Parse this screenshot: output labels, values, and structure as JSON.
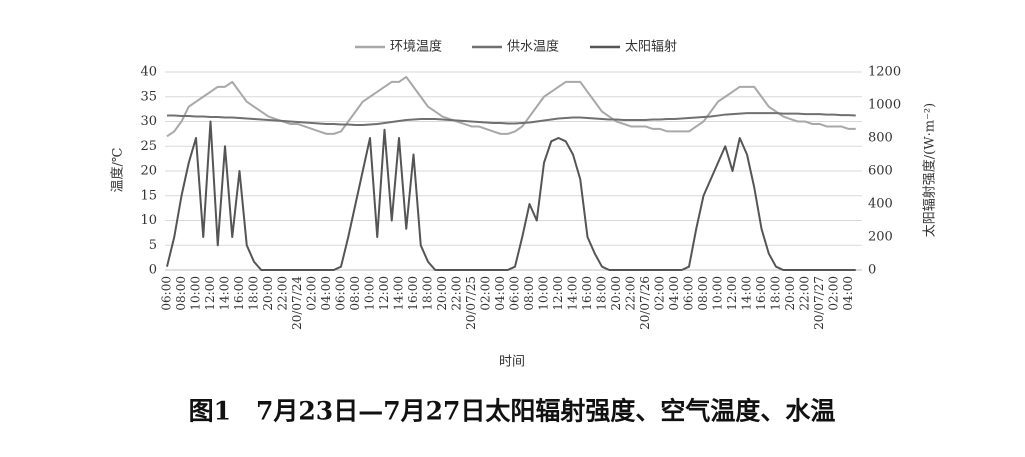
{
  "chart_data": {
    "type": "line",
    "caption": "图1　7月23日—7月27日太阳辐射强度、空气温度、水温",
    "x_label": "时间",
    "y_label": "温度/℃",
    "y2_label": "太阳辐射强度/(W·m⁻²)",
    "categories": [
      "06:00",
      null,
      "08:00",
      null,
      "10:00",
      null,
      "12:00",
      null,
      "14:00",
      null,
      "16:00",
      null,
      "18:00",
      null,
      "20:00",
      null,
      "22:00",
      null,
      "20/07/24",
      null,
      "02:00",
      null,
      "04:00",
      null,
      "06:00",
      null,
      "08:00",
      null,
      "10:00",
      null,
      "12:00",
      null,
      "14:00",
      null,
      "16:00",
      null,
      "18:00",
      null,
      "20:00",
      null,
      "22:00",
      null,
      "20/07/25",
      null,
      "02:00",
      null,
      "04:00",
      null,
      "06:00",
      null,
      "08:00",
      null,
      "10:00",
      null,
      "12:00",
      null,
      "14:00",
      null,
      "16:00",
      null,
      "18:00",
      null,
      "20:00",
      null,
      "22:00",
      null,
      "20/07/26",
      null,
      "02:00",
      null,
      "04:00",
      null,
      "06:00",
      null,
      "08:00",
      null,
      "10:00",
      null,
      "12:00",
      null,
      "14:00",
      null,
      "16:00",
      null,
      "18:00",
      null,
      "20:00",
      null,
      "22:00",
      null,
      "20/07/27",
      null,
      "02:00",
      null,
      "04:00",
      null
    ],
    "ylim": [
      0,
      40
    ],
    "yticks": [
      0,
      5,
      10,
      15,
      20,
      25,
      30,
      35,
      40
    ],
    "y2lim": [
      0,
      1200
    ],
    "y2ticks": [
      0,
      200,
      400,
      600,
      800,
      1000,
      1200
    ],
    "grid": true,
    "series": [
      {
        "name": "环境温度",
        "color": "#a8a8a8",
        "values": [
          27,
          28,
          30,
          33,
          34,
          35,
          36,
          37,
          37,
          38,
          36,
          34,
          33,
          32,
          31,
          30.5,
          30,
          29.5,
          29.5,
          29,
          28.5,
          28,
          27.5,
          27.5,
          28,
          30,
          32,
          34,
          35,
          36,
          37,
          38,
          38,
          39,
          37,
          35,
          33,
          32,
          31,
          30.5,
          30,
          29.5,
          29,
          29,
          28.5,
          28,
          27.5,
          27.5,
          28,
          29,
          31,
          33,
          35,
          36,
          37,
          38,
          38,
          38,
          36,
          34,
          32,
          31,
          30,
          29.5,
          29,
          29,
          29,
          28.5,
          28.5,
          28,
          28,
          28,
          28,
          29,
          30,
          32,
          34,
          35,
          36,
          37,
          37,
          37,
          35,
          33,
          32,
          31,
          30.5,
          30,
          30,
          29.5,
          29.5,
          29,
          29,
          29,
          28.5,
          28.5
        ]
      },
      {
        "name": "供水温度",
        "color": "#707070",
        "values": [
          31.2,
          31.2,
          31.1,
          31.1,
          31.0,
          31.0,
          30.9,
          30.9,
          30.8,
          30.8,
          30.7,
          30.6,
          30.5,
          30.4,
          30.3,
          30.2,
          30.1,
          30.0,
          29.9,
          29.8,
          29.7,
          29.6,
          29.5,
          29.5,
          29.4,
          29.4,
          29.3,
          29.3,
          29.4,
          29.5,
          29.7,
          29.9,
          30.1,
          30.3,
          30.4,
          30.5,
          30.5,
          30.5,
          30.4,
          30.3,
          30.2,
          30.1,
          30.0,
          29.9,
          29.8,
          29.7,
          29.7,
          29.6,
          29.6,
          29.7,
          29.8,
          30.0,
          30.2,
          30.4,
          30.6,
          30.7,
          30.8,
          30.8,
          30.7,
          30.6,
          30.5,
          30.4,
          30.4,
          30.3,
          30.3,
          30.3,
          30.3,
          30.4,
          30.4,
          30.5,
          30.5,
          30.6,
          30.7,
          30.8,
          30.9,
          31.0,
          31.2,
          31.4,
          31.5,
          31.6,
          31.7,
          31.7,
          31.7,
          31.7,
          31.7,
          31.6,
          31.6,
          31.6,
          31.5,
          31.5,
          31.5,
          31.4,
          31.4,
          31.3,
          31.3,
          31.2
        ]
      },
      {
        "name": "太阳辐射",
        "color": "#555555",
        "axis": "y2",
        "values": [
          20,
          200,
          450,
          650,
          800,
          200,
          900,
          150,
          750,
          200,
          600,
          150,
          50,
          0,
          0,
          0,
          0,
          0,
          0,
          0,
          0,
          0,
          0,
          0,
          20,
          200,
          400,
          600,
          800,
          200,
          850,
          300,
          800,
          250,
          700,
          150,
          50,
          0,
          0,
          0,
          0,
          0,
          0,
          0,
          0,
          0,
          0,
          0,
          20,
          200,
          400,
          300,
          650,
          780,
          800,
          780,
          700,
          550,
          200,
          100,
          20,
          0,
          0,
          0,
          0,
          0,
          0,
          0,
          0,
          0,
          0,
          0,
          20,
          250,
          450,
          550,
          650,
          750,
          600,
          800,
          700,
          500,
          250,
          100,
          20,
          0,
          0,
          0,
          0,
          0,
          0,
          0,
          0,
          0,
          0,
          0
        ]
      }
    ]
  }
}
